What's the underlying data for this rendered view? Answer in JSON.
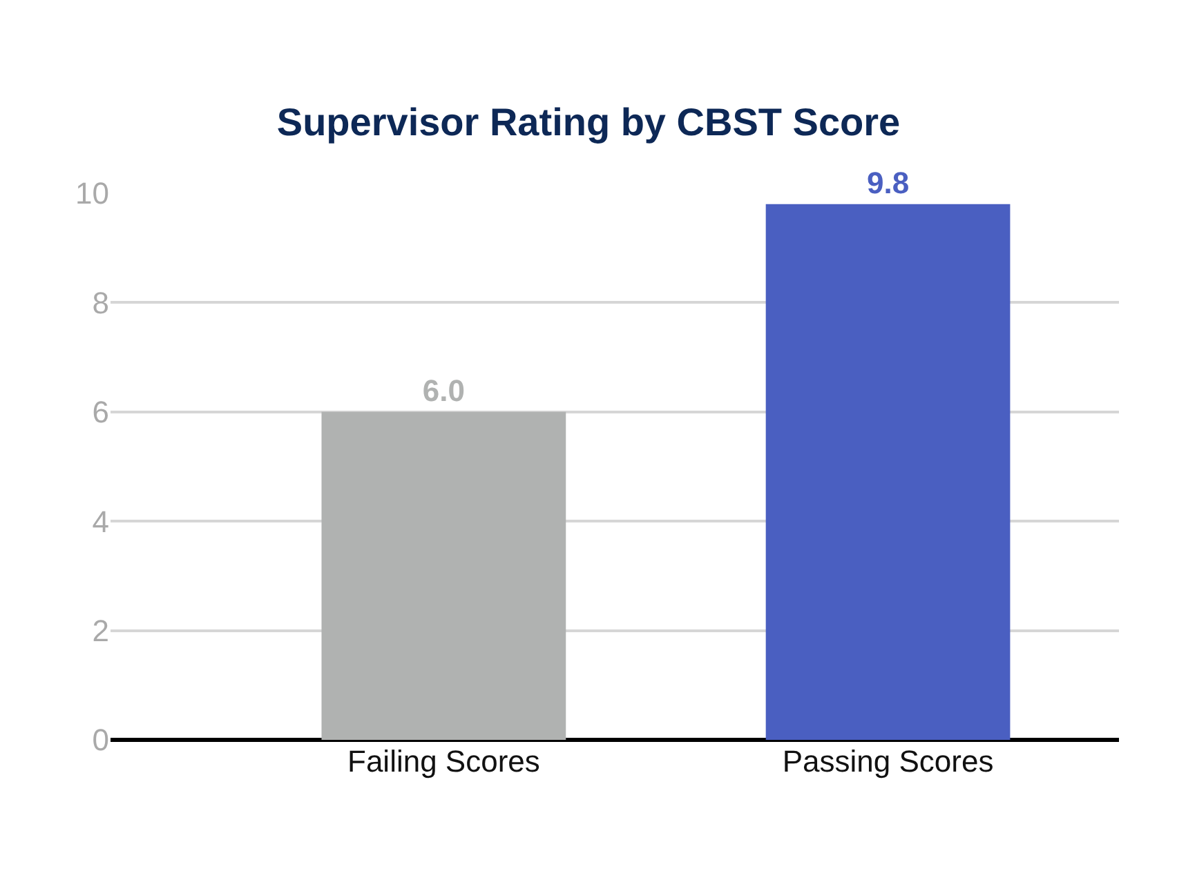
{
  "chart_data": {
    "type": "bar",
    "title": "Supervisor Rating by CBST Score",
    "categories": [
      "Failing Scores",
      "Passing Scores"
    ],
    "values": [
      6.0,
      9.8
    ],
    "colors": [
      "#b0b2b1",
      "#4a5fc1"
    ],
    "ylim": [
      0,
      10
    ],
    "yticks": [
      0,
      2,
      4,
      6,
      8,
      10
    ],
    "value_labels": [
      "6.0",
      "9.8"
    ],
    "grid": "y"
  }
}
